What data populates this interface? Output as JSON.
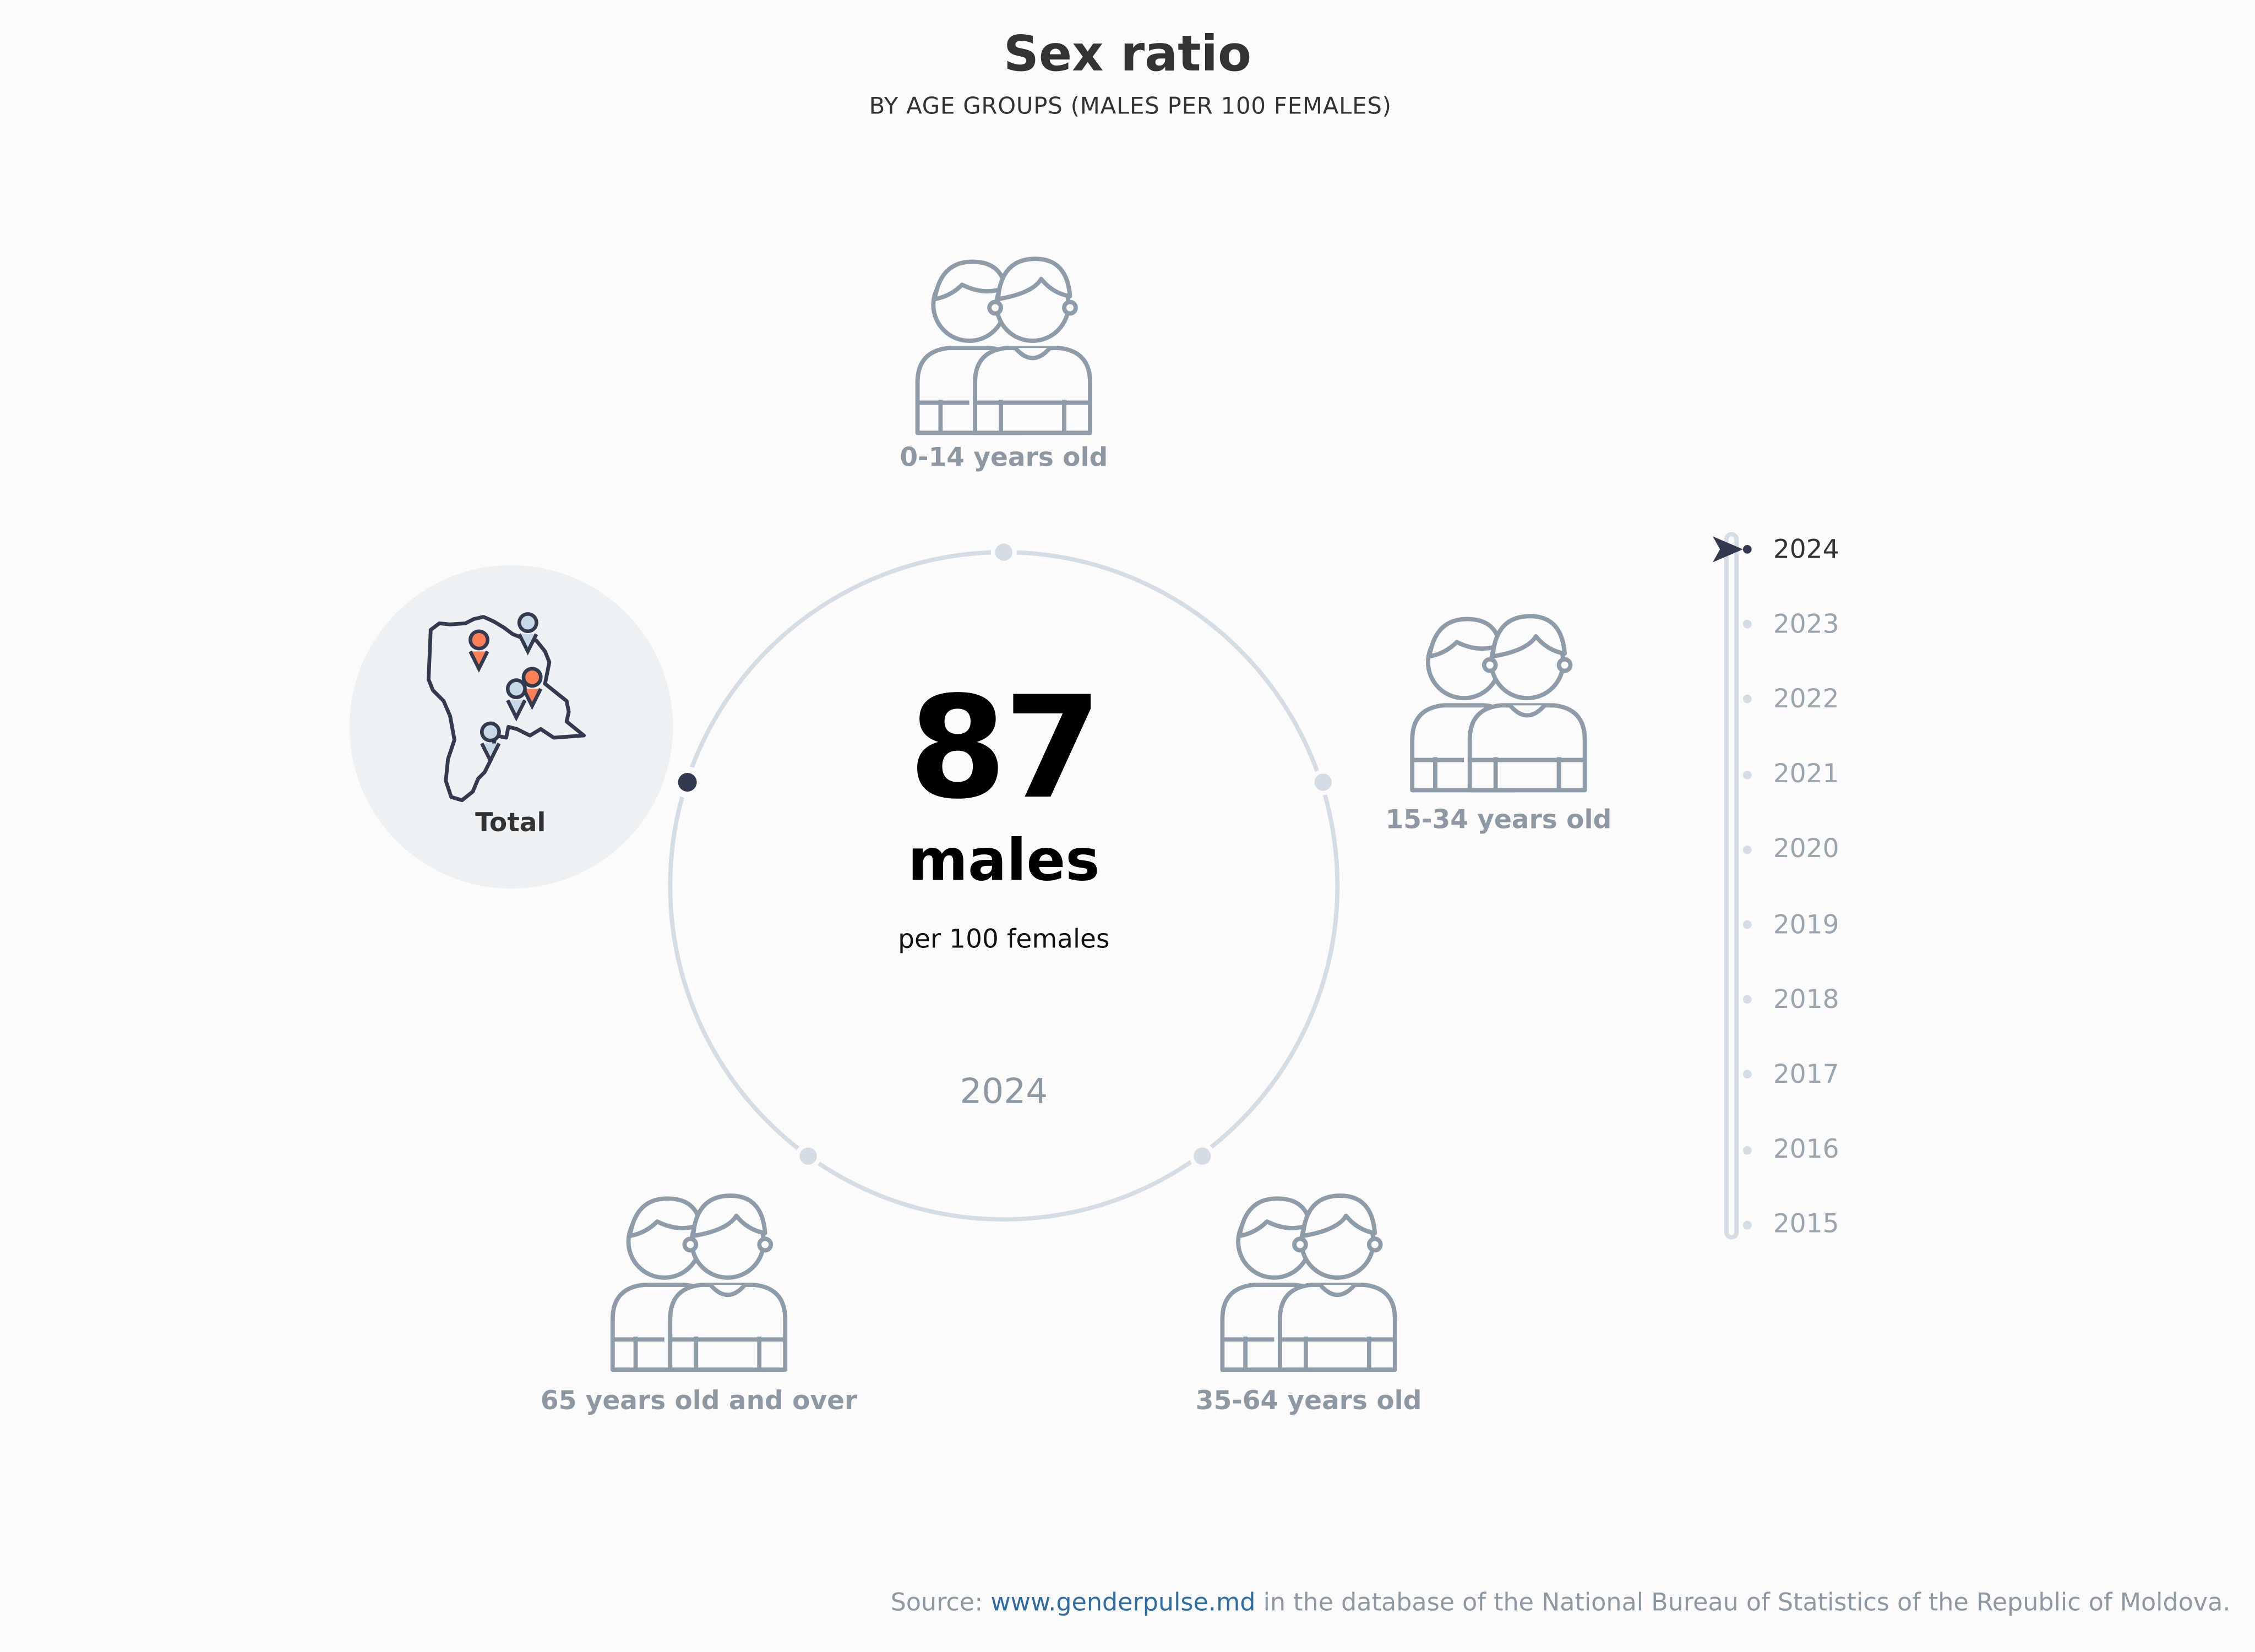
{
  "header": {
    "title": "Sex ratio",
    "subtitle": "BY AGE GROUPS (MALES PER 100 FEMALES)"
  },
  "center": {
    "value": "87",
    "unit": "males",
    "per": "per 100 females",
    "year": "2024"
  },
  "groups": [
    {
      "label": "Total",
      "icon": "moldova-map-icon",
      "selected": true
    },
    {
      "label": "0-14 years old",
      "icon": "children-pair-icon",
      "selected": false
    },
    {
      "label": "15-34 years old",
      "icon": "young-adults-pair-icon",
      "selected": false
    },
    {
      "label": "35-64 years old",
      "icon": "adults-pair-icon",
      "selected": false
    },
    {
      "label": "65 years old and over",
      "icon": "elderly-pair-icon",
      "selected": false
    }
  ],
  "timeline": {
    "selected": "2024",
    "years": [
      "2024",
      "2023",
      "2022",
      "2021",
      "2020",
      "2019",
      "2018",
      "2017",
      "2016",
      "2015"
    ]
  },
  "source": {
    "prefix": "Source:",
    "link": "www.genderpulse.md",
    "suffix": "in the database of the National Bureau of Statistics of the Republic of Moldova."
  },
  "colors": {
    "icon_stroke": "#8e9ba8",
    "ring": "#d5dce4",
    "dark": "#333a50",
    "pin_orange": "#ff7f57",
    "pin_blue": "#c9d8e6",
    "total_bg": "#eef1f4",
    "link": "#2e6da4"
  }
}
